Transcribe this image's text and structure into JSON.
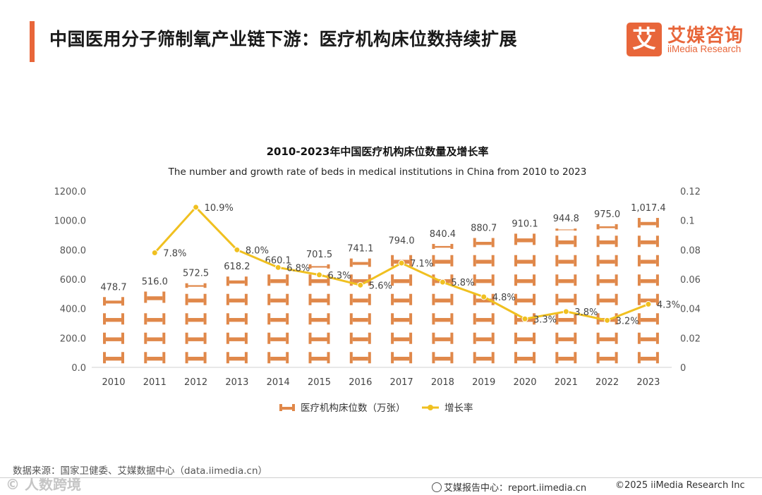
{
  "header": {
    "title": "中国医用分子筛制氧产业链下游：医疗机构床位数持续扩展",
    "logo_mark": "艾",
    "logo_cn": "艾媒咨询",
    "logo_en": "iiMedia Research"
  },
  "colors": {
    "accent": "#e8663a",
    "bar": "#e0884a",
    "line": "#f0c020"
  },
  "chart_data": {
    "type": "bar+line",
    "title": "2010-2023年中国医疗机构床位数量及增长率",
    "subtitle": "The number and growth rate of beds in medical institutions in China from 2010 to 2023",
    "categories": [
      "2010",
      "2011",
      "2012",
      "2013",
      "2014",
      "2015",
      "2016",
      "2017",
      "2018",
      "2019",
      "2020",
      "2021",
      "2022",
      "2023"
    ],
    "series": [
      {
        "name": "医疗机构床位数（万张）",
        "type": "pictorial-bar",
        "axis": "left",
        "values": [
          478.7,
          516.0,
          572.5,
          618.2,
          660.1,
          701.5,
          741.1,
          794.0,
          840.4,
          880.7,
          910.1,
          944.8,
          975.0,
          1017.4
        ],
        "labels": [
          "478.7",
          "516.0",
          "572.5",
          "618.2",
          "660.1",
          "701.5",
          "741.1",
          "794.0",
          "840.4",
          "880.7",
          "910.1",
          "944.8",
          "975.0",
          "1,017.4"
        ]
      },
      {
        "name": "增长率",
        "type": "line",
        "axis": "right",
        "values": [
          null,
          0.078,
          0.109,
          0.08,
          0.068,
          0.063,
          0.056,
          0.071,
          0.058,
          0.048,
          0.033,
          0.038,
          0.032,
          0.043
        ],
        "labels": [
          null,
          "7.8%",
          "10.9%",
          "8.0%",
          "6.8%",
          "6.3%",
          "5.6%",
          "7.1%",
          "5.8%",
          "4.8%",
          "3.3%",
          "3.8%",
          "3.2%",
          "4.3%"
        ]
      }
    ],
    "yLeft": {
      "min": 0,
      "max": 1200,
      "ticks": [
        "0.0",
        "200.0",
        "400.0",
        "600.0",
        "800.0",
        "1000.0",
        "1200.0"
      ]
    },
    "yRight": {
      "min": 0,
      "max": 0.12,
      "ticks": [
        "0",
        "0.02",
        "0.04",
        "0.06",
        "0.08",
        "0.1",
        "0.12"
      ]
    },
    "legend": [
      "医疗机构床位数（万张）",
      "增长率"
    ],
    "legend_position": "bottom"
  },
  "footer": {
    "source": "数据来源：国家卫健委、艾媒数据中心（data.iimedia.cn）",
    "watermark": "© 人数跨境",
    "report": "艾媒报告中心：report.iimedia.cn",
    "copyright": "©2025  iiMedia Research  Inc"
  }
}
